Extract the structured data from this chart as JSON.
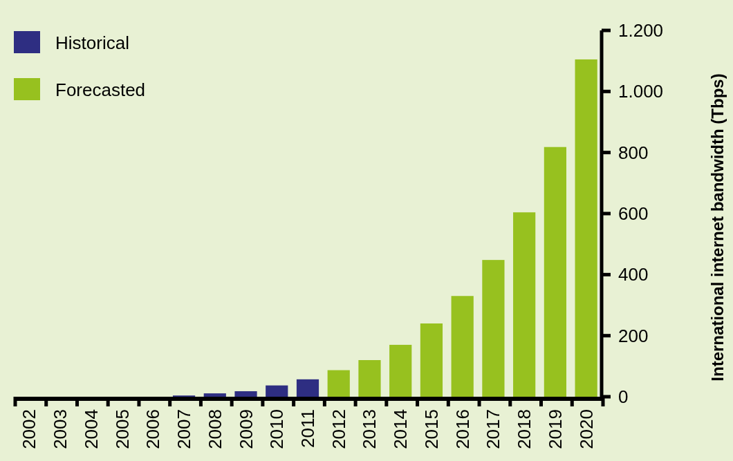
{
  "chart_data": {
    "type": "bar",
    "ylabel": "International internet bandwidth (Tbps)",
    "categories": [
      "2002",
      "2003",
      "2004",
      "2005",
      "2006",
      "2007",
      "2008",
      "2009",
      "2010",
      "2011",
      "2012",
      "2013",
      "2014",
      "2015",
      "2016",
      "2017",
      "2018",
      "2019",
      "2020"
    ],
    "series": [
      {
        "name": "Historical",
        "color": "#2e2e82",
        "values": [
          0,
          0,
          0,
          0,
          0,
          4,
          11,
          18,
          37,
          57,
          null,
          null,
          null,
          null,
          null,
          null,
          null,
          null,
          null
        ]
      },
      {
        "name": "Forecasted",
        "color": "#97c11f",
        "values": [
          null,
          null,
          null,
          null,
          null,
          null,
          null,
          null,
          null,
          null,
          87,
          120,
          170,
          240,
          330,
          448,
          604,
          818,
          1105
        ]
      }
    ],
    "ylim": [
      0,
      1200
    ],
    "yticks": [
      0,
      200,
      400,
      600,
      800,
      {
        "value": 1000,
        "label": "1.000"
      },
      {
        "value": 1200,
        "label": "1.200"
      }
    ],
    "grid": false,
    "legend": "top left"
  }
}
